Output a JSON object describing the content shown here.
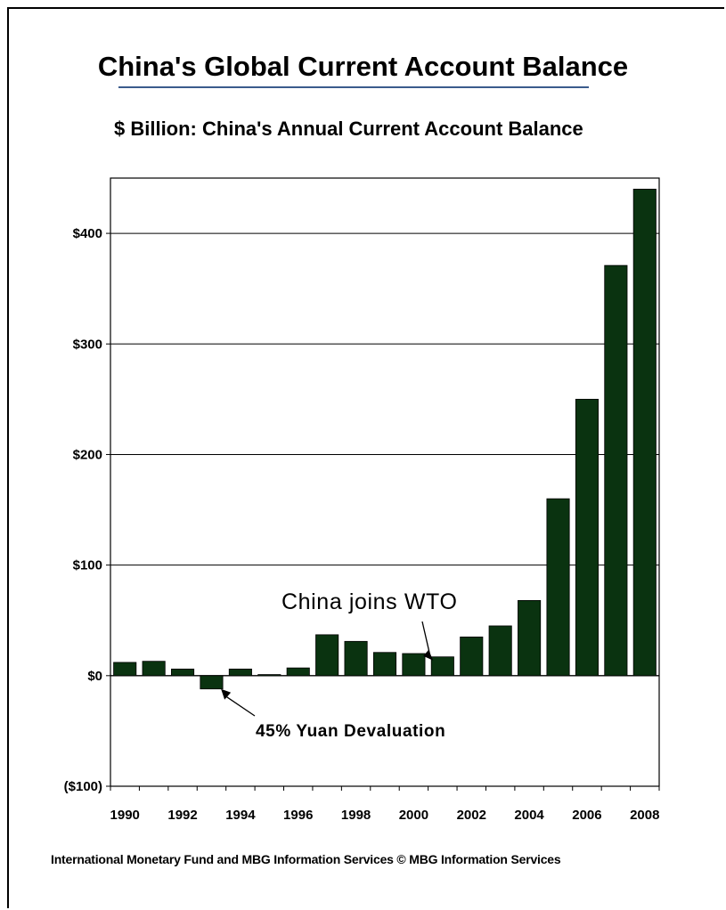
{
  "page": {
    "title": "China's Global Current Account Balance",
    "source": "International Monetary Fund and MBG Information Services   © MBG Information Services"
  },
  "chart_data": {
    "type": "bar",
    "title": "$ Billion: China's Annual Current Account Balance",
    "xlabel": "",
    "ylabel": "",
    "ylim": [
      -100,
      450
    ],
    "grid": true,
    "bar_color": "#0a3310",
    "categories": [
      "1990",
      "1991",
      "1992",
      "1993",
      "1994",
      "1995",
      "1996",
      "1997",
      "1998",
      "1999",
      "2000",
      "2001",
      "2002",
      "2003",
      "2004",
      "2005",
      "2006",
      "2007",
      "2008"
    ],
    "values": [
      12,
      13,
      6,
      -12,
      6,
      1,
      7,
      37,
      31,
      21,
      20,
      17,
      35,
      45,
      68,
      160,
      250,
      371,
      440
    ],
    "x_tick_labels": [
      "1990",
      "1992",
      "1994",
      "1996",
      "1998",
      "2000",
      "2002",
      "2004",
      "2006",
      "2008"
    ],
    "y_ticks": [
      {
        "value": 400,
        "label": "$400"
      },
      {
        "value": 300,
        "label": "$300"
      },
      {
        "value": 200,
        "label": "$200"
      },
      {
        "value": 100,
        "label": "$100"
      },
      {
        "value": 0,
        "label": "$0"
      },
      {
        "value": -100,
        "label": "($100)"
      }
    ],
    "annotations": [
      {
        "text": "China joins WTO",
        "x": "2001",
        "y": 17
      },
      {
        "text": "45% Yuan Devaluation",
        "x": "1993",
        "y": -12
      }
    ]
  }
}
